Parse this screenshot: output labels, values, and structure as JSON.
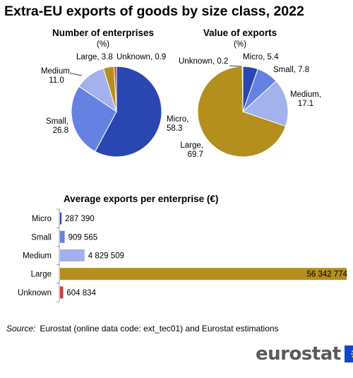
{
  "title": "Extra-EU exports of goods by size class, 2022",
  "source": {
    "label": "Source:",
    "text": "Eurostat (online data code: ext_tec01) and Eurostat estimations"
  },
  "logo": {
    "text": "eurostat",
    "flag_icon": "eu-flag-icon"
  },
  "colors": {
    "micro": "#2a46b0",
    "small": "#6581e2",
    "medium": "#a3b2ec",
    "large": "#b38f1d",
    "unknown": "#d0393f"
  },
  "chart_data": [
    {
      "type": "pie",
      "title": "Number of enterprises",
      "unit": "(%)",
      "slices": [
        {
          "key": "micro",
          "label": "Micro,",
          "value": 58.3,
          "value_text": "58.3"
        },
        {
          "key": "small",
          "label": "Small,",
          "value": 26.8,
          "value_text": "26.8"
        },
        {
          "key": "medium",
          "label": "Medium,",
          "value": 11.0,
          "value_text": "11.0"
        },
        {
          "key": "large",
          "label": "Large,",
          "value": 3.8,
          "value_text": "3.8"
        },
        {
          "key": "unknown",
          "label": "Unknown,",
          "value": 0.9,
          "value_text": "0.9"
        }
      ]
    },
    {
      "type": "pie",
      "title": "Value of exports",
      "unit": "(%)",
      "slices": [
        {
          "key": "micro",
          "label": "Micro,",
          "value": 5.4,
          "value_text": "5.4"
        },
        {
          "key": "small",
          "label": "Small,",
          "value": 7.8,
          "value_text": "7.8"
        },
        {
          "key": "medium",
          "label": "Medium,",
          "value": 17.1,
          "value_text": "17.1"
        },
        {
          "key": "large",
          "label": "Large,",
          "value": 69.7,
          "value_text": "69.7"
        },
        {
          "key": "unknown",
          "label": "Unknown,",
          "value": 0.2,
          "value_text": "0.2"
        }
      ]
    },
    {
      "type": "bar",
      "orientation": "horizontal",
      "title": "Average exports per enterprise (€)",
      "categories": [
        "Micro",
        "Small",
        "Medium",
        "Large",
        "Unknown"
      ],
      "keys": [
        "micro",
        "small",
        "medium",
        "large",
        "unknown"
      ],
      "values": [
        287390,
        909565,
        4829509,
        56342774,
        604834
      ],
      "value_labels": [
        "287 390",
        "909 565",
        "4 829 509",
        "56 342 774",
        "604 834"
      ],
      "xlim": [
        0,
        56342774
      ]
    }
  ]
}
